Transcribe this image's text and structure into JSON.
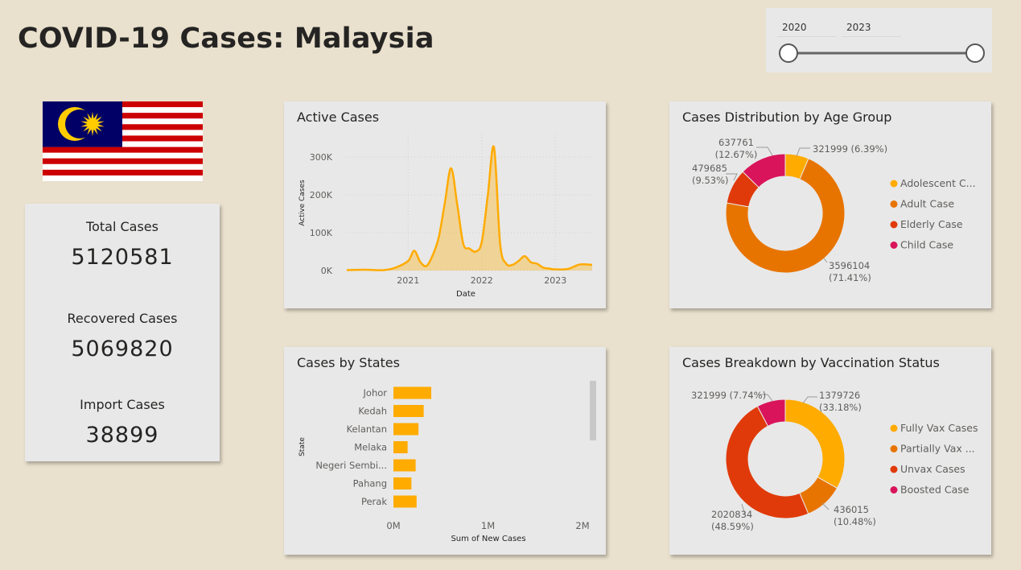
{
  "page": {
    "title": "COVID-19 Cases: Malaysia"
  },
  "slicer": {
    "start_year": "2020",
    "end_year": "2023"
  },
  "kpis": {
    "total_label": "Total Cases",
    "total_value": "5120581",
    "recovered_label": "Recovered Cases",
    "recovered_value": "5069820",
    "import_label": "Import Cases",
    "import_value": "38899"
  },
  "colors": {
    "background": "#e9e0cd",
    "panel": "#e8e8e8",
    "amber": "#ffab00",
    "orange": "#e87400",
    "red_orange": "#e03a0a",
    "crimson": "#d9145a"
  },
  "chart_data": [
    {
      "type": "area",
      "title": "Active Cases",
      "xlabel": "Date",
      "ylabel": "Active Cases",
      "x_ticks": [
        "2021",
        "2022",
        "2023"
      ],
      "y_ticks": [
        "0K",
        "100K",
        "200K",
        "300K"
      ],
      "ylim": [
        0,
        340000
      ],
      "xlim": [
        "2020-03",
        "2023-07"
      ],
      "x": [
        "2020-03",
        "2020-06",
        "2020-09",
        "2020-11",
        "2021-01",
        "2021-02",
        "2021-03",
        "2021-04",
        "2021-05",
        "2021-06",
        "2021-07",
        "2021-08",
        "2021-09",
        "2021-10",
        "2021-11",
        "2021-12",
        "2022-01",
        "2022-02",
        "2022-03",
        "2022-04",
        "2022-05",
        "2022-06",
        "2022-07",
        "2022-08",
        "2022-09",
        "2022-10",
        "2022-11",
        "2022-12",
        "2023-01",
        "2023-03",
        "2023-05",
        "2023-07"
      ],
      "values": [
        1000,
        2000,
        1000,
        8000,
        25000,
        52000,
        22000,
        12000,
        40000,
        88000,
        180000,
        270000,
        175000,
        70000,
        58000,
        50000,
        75000,
        200000,
        325000,
        70000,
        18000,
        15000,
        25000,
        38000,
        22000,
        18000,
        8000,
        5000,
        3000,
        4000,
        16000,
        15000
      ],
      "grid": true,
      "legend": "none"
    },
    {
      "type": "pie",
      "title": "Cases Distribution by Age Group",
      "legend": "right",
      "series": [
        {
          "name": "Adolescent C...",
          "value": 321999,
          "label": "321999 (6.39%)",
          "color": "#ffab00"
        },
        {
          "name": "Adult Case",
          "value": 3596104,
          "label_value": "3596104",
          "label_pct": "(71.41%)",
          "color": "#e87400"
        },
        {
          "name": "Elderly Case",
          "value": 479685,
          "label_value": "479685",
          "label_pct": "(9.53%)",
          "color": "#e03a0a"
        },
        {
          "name": "Child Case",
          "value": 637761,
          "label_value": "637761",
          "label_pct": "(12.67%)",
          "color": "#d9145a"
        }
      ]
    },
    {
      "type": "bar",
      "title": "Cases by States",
      "orientation": "horizontal",
      "xlabel": "Sum of New Cases",
      "ylabel": "State",
      "x_ticks": [
        "0M",
        "1M",
        "2M"
      ],
      "xlim": [
        0,
        2000000
      ],
      "categories": [
        "Johor",
        "Kedah",
        "Kelantan",
        "Melaka",
        "Negeri Sembi...",
        "Pahang",
        "Perak"
      ],
      "values": [
        400000,
        320000,
        265000,
        150000,
        235000,
        190000,
        245000
      ]
    },
    {
      "type": "pie",
      "title": "Cases Breakdown by Vaccination Status",
      "legend": "right",
      "series": [
        {
          "name": "Fully Vax Cases",
          "value": 1379726,
          "label_value": "1379726",
          "label_pct": "(33.18%)",
          "color": "#ffab00"
        },
        {
          "name": "Partially Vax ...",
          "value": 436015,
          "label_value": "436015",
          "label_pct": "(10.48%)",
          "color": "#e87400"
        },
        {
          "name": "Unvax Cases",
          "value": 2020834,
          "label_value": "2020834",
          "label_pct": "(48.59%)",
          "color": "#e03a0a"
        },
        {
          "name": "Boosted Case",
          "value": 321999,
          "label": "321999 (7.74%)",
          "color": "#d9145a"
        }
      ]
    }
  ]
}
